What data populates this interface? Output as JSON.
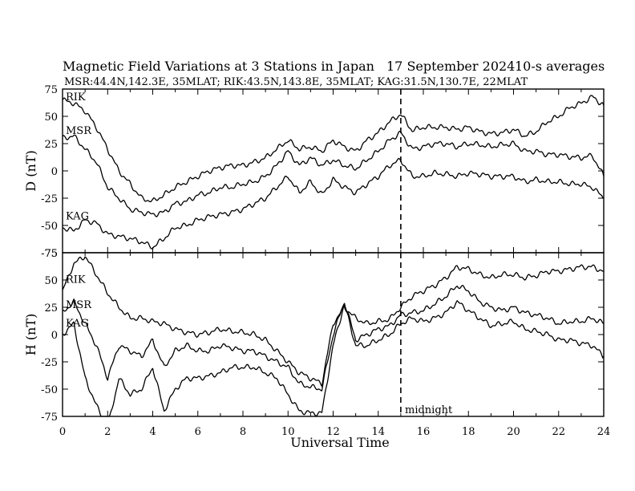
{
  "header": {
    "title": "Magnetic Field Variations at 3 Stations in Japan",
    "date": "17 September 2024",
    "averaging": "10-s averages",
    "stations_line": "MSR:44.4N,142.3E, 35MLAT;  RIK:43.5N,143.8E, 35MLAT;  KAG:31.5N,130.7E, 22MLAT"
  },
  "annotation": {
    "midnight": "midnight"
  },
  "chart_data": [
    {
      "type": "line",
      "panel": "D",
      "ylabel": "D (nT)",
      "xlabel": "",
      "xlim": [
        0,
        24
      ],
      "ylim": [
        -75,
        75
      ],
      "yticks": [
        "75",
        "50",
        "25",
        "0",
        "-25",
        "-50",
        "-75"
      ],
      "vline_x": 15,
      "series": [
        {
          "name": "RIK",
          "x": [
            0,
            0.5,
            1,
            1.5,
            2,
            2.5,
            3,
            3.5,
            4,
            4.5,
            5,
            5.5,
            6,
            6.5,
            7,
            7.5,
            8,
            8.5,
            9,
            9.5,
            10,
            10.5,
            11,
            11.5,
            12,
            12.5,
            13,
            13.5,
            14,
            14.5,
            15,
            15.5,
            16,
            16.5,
            17,
            17.5,
            18,
            18.5,
            19,
            19.5,
            20,
            20.5,
            21,
            21.5,
            22,
            22.5,
            23,
            23.5,
            24
          ],
          "values": [
            65,
            62,
            55,
            40,
            20,
            0,
            -12,
            -25,
            -28,
            -22,
            -15,
            -10,
            -5,
            0,
            3,
            5,
            5,
            8,
            12,
            20,
            28,
            20,
            22,
            18,
            28,
            22,
            18,
            28,
            35,
            45,
            52,
            37,
            40,
            40,
            40,
            38,
            40,
            36,
            34,
            35,
            38,
            32,
            36,
            45,
            50,
            58,
            62,
            68,
            60
          ]
        },
        {
          "name": "MSR",
          "x": [
            0,
            0.5,
            1,
            1.5,
            2,
            2.5,
            3,
            3.5,
            4,
            4.5,
            5,
            5.5,
            6,
            6.5,
            7,
            7.5,
            8,
            8.5,
            9,
            9.5,
            10,
            10.5,
            11,
            11.5,
            12,
            12.5,
            13,
            13.5,
            14,
            14.5,
            15,
            15.5,
            16,
            16.5,
            17,
            17.5,
            18,
            18.5,
            19,
            19.5,
            20,
            20.5,
            21,
            21.5,
            22,
            22.5,
            23,
            23.5,
            24
          ],
          "values": [
            30,
            32,
            20,
            8,
            -15,
            -25,
            -35,
            -38,
            -40,
            -38,
            -30,
            -28,
            -22,
            -20,
            -15,
            -15,
            -12,
            -10,
            -5,
            5,
            18,
            5,
            12,
            5,
            10,
            5,
            2,
            10,
            18,
            28,
            35,
            20,
            22,
            25,
            25,
            22,
            25,
            24,
            22,
            24,
            25,
            18,
            18,
            15,
            15,
            13,
            12,
            14,
            -5
          ]
        },
        {
          "name": "KAG",
          "x": [
            0,
            0.5,
            1,
            1.5,
            2,
            2.5,
            3,
            3.5,
            4,
            4.5,
            5,
            5.5,
            6,
            6.5,
            7,
            7.5,
            8,
            8.5,
            9,
            9.5,
            10,
            10.5,
            11,
            11.5,
            12,
            12.5,
            13,
            13.5,
            14,
            14.5,
            15,
            15.5,
            16,
            16.5,
            17,
            17.5,
            18,
            18.5,
            19,
            19.5,
            20,
            20.5,
            21,
            21.5,
            22,
            22.5,
            23,
            23.5,
            24
          ],
          "values": [
            -52,
            -55,
            -45,
            -48,
            -58,
            -60,
            -62,
            -65,
            -70,
            -62,
            -52,
            -50,
            -45,
            -42,
            -40,
            -38,
            -35,
            -30,
            -25,
            -15,
            -5,
            -20,
            -10,
            -22,
            -8,
            -15,
            -20,
            -12,
            -5,
            5,
            10,
            -5,
            -5,
            -2,
            -3,
            -5,
            -2,
            -3,
            -5,
            -5,
            -5,
            -10,
            -8,
            -10,
            -10,
            -12,
            -12,
            -15,
            -25
          ]
        }
      ]
    },
    {
      "type": "line",
      "panel": "H",
      "ylabel": "H (nT)",
      "xlabel": "Universal Time",
      "xlim": [
        0,
        24
      ],
      "ylim": [
        -75,
        75
      ],
      "xticks": [
        "0",
        "2",
        "4",
        "6",
        "8",
        "10",
        "12",
        "14",
        "16",
        "18",
        "20",
        "22",
        "24"
      ],
      "yticks": [
        "75",
        "50",
        "25",
        "0",
        "-25",
        "-50",
        "-75"
      ],
      "vline_x": 15,
      "series": [
        {
          "name": "RIK",
          "x": [
            0,
            0.5,
            1,
            1.5,
            2,
            2.5,
            3,
            3.5,
            4,
            4.5,
            5,
            5.5,
            6,
            6.5,
            7,
            7.5,
            8,
            8.5,
            9,
            9.5,
            10,
            10.5,
            11,
            11.5,
            12,
            12.5,
            13,
            13.5,
            14,
            14.5,
            15,
            15.5,
            16,
            16.5,
            17,
            17.5,
            18,
            18.5,
            19,
            19.5,
            20,
            20.5,
            21,
            21.5,
            22,
            22.5,
            23,
            23.5,
            24
          ],
          "values": [
            40,
            65,
            72,
            55,
            38,
            25,
            15,
            15,
            12,
            10,
            5,
            2,
            0,
            2,
            5,
            3,
            2,
            0,
            -5,
            -15,
            -25,
            -35,
            -40,
            -45,
            10,
            25,
            15,
            10,
            12,
            14,
            25,
            35,
            40,
            45,
            52,
            62,
            60,
            55,
            52,
            55,
            55,
            52,
            54,
            58,
            58,
            60,
            62,
            62,
            58
          ]
        },
        {
          "name": "MSR",
          "x": [
            0,
            0.5,
            1,
            1.5,
            2,
            2.5,
            3,
            3.5,
            4,
            4.5,
            5,
            5.5,
            6,
            6.5,
            7,
            7.5,
            8,
            8.5,
            9,
            9.5,
            10,
            10.5,
            11,
            11.5,
            12,
            12.5,
            13,
            13.5,
            14,
            14.5,
            15,
            15.5,
            16,
            16.5,
            17,
            17.5,
            18,
            18.5,
            19,
            19.5,
            20,
            20.5,
            21,
            21.5,
            22,
            22.5,
            23,
            23.5,
            24
          ],
          "values": [
            20,
            30,
            10,
            -10,
            -40,
            -10,
            -15,
            -20,
            -5,
            -30,
            -15,
            -10,
            -15,
            -15,
            -10,
            -12,
            -15,
            -15,
            -20,
            -25,
            -30,
            -45,
            -48,
            -50,
            0,
            30,
            -5,
            0,
            5,
            8,
            18,
            20,
            22,
            28,
            35,
            45,
            40,
            30,
            25,
            22,
            25,
            20,
            18,
            15,
            10,
            12,
            12,
            15,
            10
          ]
        },
        {
          "name": "KAG",
          "x": [
            0,
            0.5,
            1,
            1.5,
            2,
            2.5,
            3,
            3.5,
            4,
            4.5,
            5,
            5.5,
            6,
            6.5,
            7,
            7.5,
            8,
            8.5,
            9,
            9.5,
            10,
            10.5,
            11,
            11.5,
            12,
            12.5,
            13,
            13.5,
            14,
            14.5,
            15,
            15.5,
            16,
            16.5,
            17,
            17.5,
            18,
            18.5,
            19,
            19.5,
            20,
            20.5,
            21,
            21.5,
            22,
            22.5,
            23,
            23.5,
            24
          ],
          "values": [
            0,
            10,
            -40,
            -65,
            -85,
            -40,
            -55,
            -50,
            -30,
            -70,
            -50,
            -40,
            -40,
            -38,
            -35,
            -30,
            -30,
            -30,
            -35,
            -40,
            -55,
            -70,
            -72,
            -72,
            -10,
            28,
            -10,
            -10,
            -5,
            0,
            10,
            15,
            12,
            15,
            20,
            30,
            22,
            15,
            8,
            10,
            12,
            5,
            3,
            0,
            -5,
            -5,
            -8,
            -10,
            -20
          ]
        }
      ]
    }
  ]
}
